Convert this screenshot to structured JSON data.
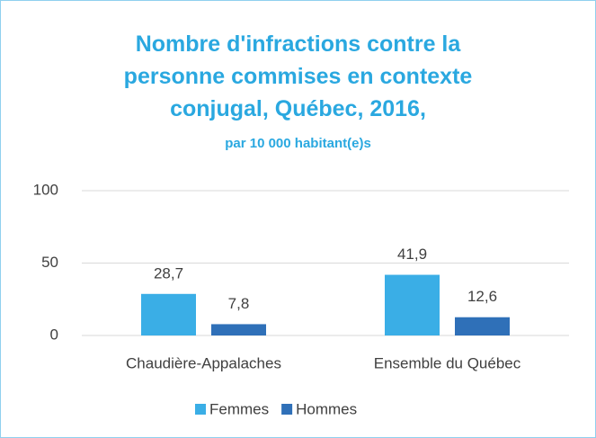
{
  "chart_data": {
    "type": "bar",
    "title": "Nombre d'infractions contre la personne commises en contexte conjugal, Québec, 2016,",
    "subtitle": "par 10 000 habitant(e)s",
    "categories": [
      "Chaudière-Appalaches",
      "Ensemble du Québec"
    ],
    "series": [
      {
        "name": "Femmes",
        "color": "#3aaee6",
        "values": [
          28.7,
          41.9
        ],
        "value_labels": [
          "28,7",
          "41,9"
        ]
      },
      {
        "name": "Hommes",
        "color": "#2f70b8",
        "values": [
          7.8,
          12.6
        ],
        "value_labels": [
          "7,8",
          "12,6"
        ]
      }
    ],
    "ylim": [
      0,
      100
    ],
    "yticks": [
      0,
      50,
      100
    ],
    "grid": true,
    "legend": "bottom"
  }
}
